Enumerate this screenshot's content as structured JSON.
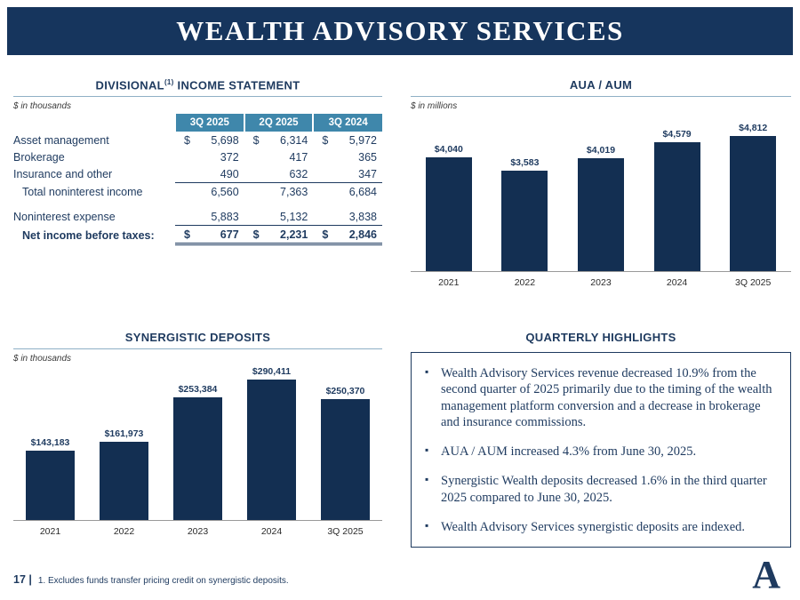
{
  "slide": {
    "title": "WEALTH ADVISORY SERVICES",
    "page_number": "17 |",
    "footnote": "1. Excludes funds transfer pricing credit on synergistic deposits.",
    "logo_letter": "A"
  },
  "colors": {
    "banner": "#16355d",
    "bar": "#132f52",
    "table_header": "#3f87ab",
    "text_navy": "#1e3a5f"
  },
  "income_statement": {
    "title_pre": "DIVISIONAL",
    "title_sup": "(1)",
    "title_post": " INCOME STATEMENT",
    "units": "$ in thousands",
    "columns": [
      "3Q 2025",
      "2Q 2025",
      "3Q 2024"
    ],
    "rows": [
      {
        "label": "Asset management",
        "dollar": true,
        "values": [
          "5,698",
          "6,314",
          "5,972"
        ]
      },
      {
        "label": "Brokerage",
        "values": [
          "372",
          "417",
          "365"
        ]
      },
      {
        "label": "Insurance and other",
        "underline": true,
        "values": [
          "490",
          "632",
          "347"
        ]
      },
      {
        "label": "Total noninterest income",
        "indent": true,
        "values": [
          "6,560",
          "7,363",
          "6,684"
        ]
      },
      {
        "label": "Noninterest expense",
        "spacer_before": true,
        "underline": true,
        "values": [
          "5,883",
          "5,132",
          "3,838"
        ]
      },
      {
        "label": "Net income before taxes:",
        "indent": true,
        "bold": true,
        "dollar": true,
        "double_underline": true,
        "values": [
          "677",
          "2,231",
          "2,846"
        ]
      }
    ]
  },
  "chart_data": [
    {
      "type": "bar",
      "title": "AUA / AUM",
      "units": "$ in millions",
      "categories": [
        "2021",
        "2022",
        "2023",
        "2024",
        "3Q 2025"
      ],
      "values": [
        4040,
        3583,
        4019,
        4579,
        4812
      ],
      "labels": [
        "$4,040",
        "$3,583",
        "$4,019",
        "$4,579",
        "$4,812"
      ],
      "ylim": [
        0,
        4812
      ],
      "grid": false,
      "legend": false,
      "bar_color": "#132f52"
    },
    {
      "type": "bar",
      "title": "SYNERGISTIC DEPOSITS",
      "units": "$ in thousands",
      "categories": [
        "2021",
        "2022",
        "2023",
        "2024",
        "3Q 2025"
      ],
      "values": [
        143183,
        161973,
        253384,
        290411,
        250370
      ],
      "labels": [
        "$143,183",
        "$161,973",
        "$253,384",
        "$290,411",
        "$250,370"
      ],
      "ylim": [
        0,
        290411
      ],
      "grid": false,
      "legend": false,
      "bar_color": "#132f52"
    }
  ],
  "highlights": {
    "title": "QUARTERLY HIGHLIGHTS",
    "bullets": [
      "Wealth Advisory Services revenue decreased 10.9% from the second quarter of 2025 primarily due to the timing of the wealth management platform conversion and a decrease in brokerage and insurance commissions.",
      "AUA / AUM increased 4.3% from June 30, 2025.",
      "Synergistic Wealth deposits decreased 1.6% in the third quarter 2025 compared to June 30, 2025.",
      "Wealth Advisory Services synergistic deposits are indexed."
    ]
  }
}
